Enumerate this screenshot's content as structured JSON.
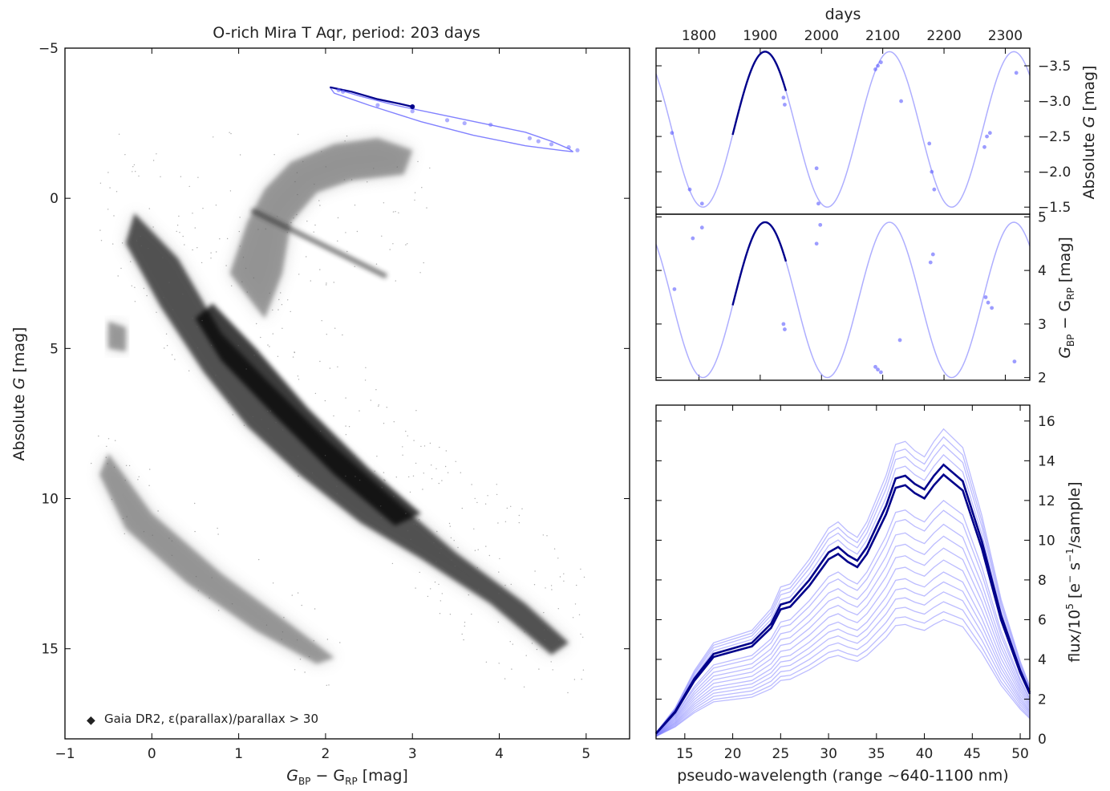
{
  "chart_data": [
    {
      "type": "scatter",
      "title": "O-rich Mira T Aqr, period: 203 days",
      "xlabel_main": "G",
      "xlabel_sub1": "BP",
      "xlabel_mid": " − G",
      "xlabel_sub2": "RP",
      "xlabel_unit": " [mag]",
      "ylabel_main": "Absolute ",
      "ylabel_italic": "G",
      "ylabel_unit": " [mag]",
      "xlim": [
        -1,
        5.5
      ],
      "ylim": [
        18,
        -5
      ],
      "xticks": [
        -1,
        0,
        1,
        2,
        3,
        4,
        5
      ],
      "xtick_labels": [
        "−1",
        "0",
        "1",
        "2",
        "3",
        "4",
        "5"
      ],
      "yticks": [
        -5,
        0,
        5,
        10,
        15
      ],
      "ytick_labels": [
        "−5",
        "0",
        "5",
        "10",
        "15"
      ],
      "legend": {
        "label": "Gaia DR2, ε(parallax)/parallax > 30",
        "placement": "bottom-left"
      },
      "background_color": "#808080",
      "track_color": "#6b6bff",
      "highlight_color": "#00008b",
      "background_regions": [
        {
          "name": "main sequence",
          "path": [
            [
              -0.2,
              0.5
            ],
            [
              0.3,
              2.0
            ],
            [
              0.8,
              4.5
            ],
            [
              1.3,
              6.0
            ],
            [
              2.0,
              8.0
            ],
            [
              2.7,
              9.8
            ],
            [
              3.5,
              11.8
            ],
            [
              4.3,
              13.5
            ],
            [
              4.8,
              14.8
            ],
            [
              4.6,
              15.2
            ],
            [
              3.9,
              13.5
            ],
            [
              3.1,
              12.0
            ],
            [
              2.4,
              10.8
            ],
            [
              1.7,
              9.2
            ],
            [
              1.1,
              7.6
            ],
            [
              0.6,
              5.8
            ],
            [
              0.1,
              3.6
            ],
            [
              -0.3,
              1.5
            ]
          ]
        },
        {
          "name": "giant branch",
          "path": [
            [
              0.9,
              2.5
            ],
            [
              1.1,
              0.8
            ],
            [
              1.3,
              -0.3
            ],
            [
              1.6,
              -1.2
            ],
            [
              2.1,
              -1.8
            ],
            [
              2.6,
              -2.0
            ],
            [
              3.0,
              -1.6
            ],
            [
              2.9,
              -0.8
            ],
            [
              2.3,
              -0.6
            ],
            [
              1.9,
              -0.2
            ],
            [
              1.6,
              0.8
            ],
            [
              1.5,
              2.5
            ],
            [
              1.3,
              4.0
            ]
          ]
        },
        {
          "name": "white dwarfs",
          "path": [
            [
              -0.5,
              8.5
            ],
            [
              0.0,
              10.5
            ],
            [
              0.8,
              12.5
            ],
            [
              1.6,
              14.2
            ],
            [
              2.1,
              15.3
            ],
            [
              1.9,
              15.5
            ],
            [
              1.2,
              14.4
            ],
            [
              0.4,
              12.8
            ],
            [
              -0.3,
              11.0
            ],
            [
              -0.6,
              9.2
            ]
          ]
        },
        {
          "name": "horizontal clump",
          "path": [
            [
              -0.5,
              4.1
            ],
            [
              -0.3,
              4.3
            ],
            [
              -0.3,
              5.1
            ],
            [
              -0.5,
              5.0
            ]
          ]
        }
      ],
      "mira_track": {
        "x": [
          2.05,
          2.4,
          2.8,
          3.3,
          3.8,
          4.3,
          4.6,
          4.8,
          4.85,
          4.7,
          4.3,
          3.7,
          3.1,
          2.5,
          2.1,
          2.05
        ],
        "y": [
          -3.7,
          -3.4,
          -3.1,
          -2.8,
          -2.5,
          -2.2,
          -1.9,
          -1.65,
          -1.55,
          -1.6,
          -1.75,
          -2.1,
          -2.55,
          -3.1,
          -3.5,
          -3.7
        ]
      },
      "mira_highlight": {
        "x": [
          2.05,
          2.3,
          2.6,
          2.85,
          3.0
        ],
        "y": [
          -3.7,
          -3.55,
          -3.3,
          -3.15,
          -3.05
        ]
      },
      "mira_points": {
        "x": [
          2.15,
          2.6,
          3.0,
          3.4,
          3.6,
          3.9,
          4.35,
          4.45,
          4.6,
          4.8,
          4.9,
          2.2
        ],
        "y": [
          -3.6,
          -3.1,
          -2.9,
          -2.6,
          -2.5,
          -2.45,
          -2.0,
          -1.9,
          -1.8,
          -1.7,
          -1.6,
          -3.55
        ]
      }
    },
    {
      "type": "line",
      "xlabel": "days",
      "ylabel_main": "Absolute ",
      "ylabel_italic": "G",
      "ylabel_unit": " [mag]",
      "xlim": [
        1730,
        2340
      ],
      "ylim": [
        -1.4,
        -3.75
      ],
      "xticks": [
        1800,
        1900,
        2000,
        2100,
        2200,
        2300
      ],
      "xtick_labels": [
        "1800",
        "1900",
        "2000",
        "2100",
        "2200",
        "2300"
      ],
      "yticks": [
        -3.5,
        -3.0,
        -2.5,
        -2.0,
        -1.5
      ],
      "ytick_labels": [
        "−3.5",
        "−3.0",
        "−2.5",
        "−2.0",
        "−1.5"
      ],
      "model": {
        "period": 203,
        "t_peak": 1908,
        "amplitude": 1.1,
        "mean": -2.6
      },
      "highlight_range": [
        1855,
        1942
      ],
      "points": {
        "x": [
          1756,
          1785,
          1805,
          1938,
          1940,
          1992,
          1995,
          2088,
          2092,
          2097,
          2130,
          2176,
          2180,
          2184,
          2266,
          2270,
          2275,
          2318
        ],
        "y": [
          -2.55,
          -1.75,
          -1.55,
          -3.05,
          -2.95,
          -2.05,
          -1.55,
          -3.45,
          -3.5,
          -3.55,
          -3.0,
          -2.4,
          -2.0,
          -1.75,
          -2.35,
          -2.5,
          -2.55,
          -3.4
        ]
      }
    },
    {
      "type": "line",
      "ylabel_main": "G",
      "ylabel_sub1": "BP",
      "ylabel_mid": " − G",
      "ylabel_sub2": "RP",
      "ylabel_unit": " [mag]",
      "xlim": [
        1730,
        2340
      ],
      "ylim": [
        1.95,
        5.05
      ],
      "yticks": [
        2,
        3,
        4,
        5
      ],
      "ytick_labels": [
        "2",
        "3",
        "4",
        "5"
      ],
      "model": {
        "period": 203,
        "t_min": 1908,
        "amplitude": 1.45,
        "mean": 3.45
      },
      "highlight_range": [
        1855,
        1942
      ],
      "points": {
        "x": [
          1760,
          1790,
          1805,
          1938,
          1940,
          1992,
          1998,
          2088,
          2092,
          2097,
          2128,
          2178,
          2182,
          2268,
          2272,
          2278,
          2315
        ],
        "y": [
          3.65,
          4.6,
          4.8,
          3.0,
          2.9,
          4.5,
          4.85,
          2.2,
          2.15,
          2.1,
          2.7,
          4.15,
          4.3,
          3.5,
          3.4,
          3.3,
          2.3
        ]
      }
    },
    {
      "type": "line",
      "xlabel": "pseudo-wavelength (range  ~640-1100 nm)",
      "ylabel_main": "flux/10",
      "ylabel_sup": "5",
      "ylabel_unit": "  [e",
      "ylabel_sup2": "−",
      "ylabel_unit2": " s",
      "ylabel_sup3": "−1",
      "ylabel_unit3": "/sample]",
      "xlim": [
        12,
        51
      ],
      "ylim": [
        0,
        16.8
      ],
      "xticks": [
        15,
        20,
        25,
        30,
        35,
        40,
        45,
        50
      ],
      "xtick_labels": [
        "15",
        "20",
        "25",
        "30",
        "35",
        "40",
        "45",
        "50"
      ],
      "yticks": [
        0,
        2,
        4,
        6,
        8,
        10,
        12,
        14,
        16
      ],
      "ytick_labels": [
        "0",
        "2",
        "4",
        "6",
        "8",
        "10",
        "12",
        "14",
        "16"
      ],
      "x": [
        12,
        14,
        16,
        18,
        20,
        22,
        24,
        25,
        26,
        28,
        30,
        31,
        32,
        33,
        34,
        36,
        37,
        38,
        39,
        40,
        41,
        42,
        44,
        46,
        48,
        50,
        51
      ],
      "shape": [
        0.02,
        0.1,
        0.22,
        0.31,
        0.33,
        0.35,
        0.42,
        0.49,
        0.5,
        0.58,
        0.68,
        0.7,
        0.67,
        0.65,
        0.7,
        0.85,
        0.95,
        0.96,
        0.93,
        0.91,
        0.96,
        1.0,
        0.94,
        0.72,
        0.45,
        0.25,
        0.17
      ],
      "highlight_scales": [
        13.8,
        13.3
      ],
      "faint_scales": [
        15.6,
        15.2,
        14.8,
        14.3,
        12.0,
        11.5,
        10.8,
        10.2,
        9.6,
        9.0,
        8.4,
        7.9,
        7.4,
        6.9,
        6.4,
        6.0
      ]
    }
  ]
}
